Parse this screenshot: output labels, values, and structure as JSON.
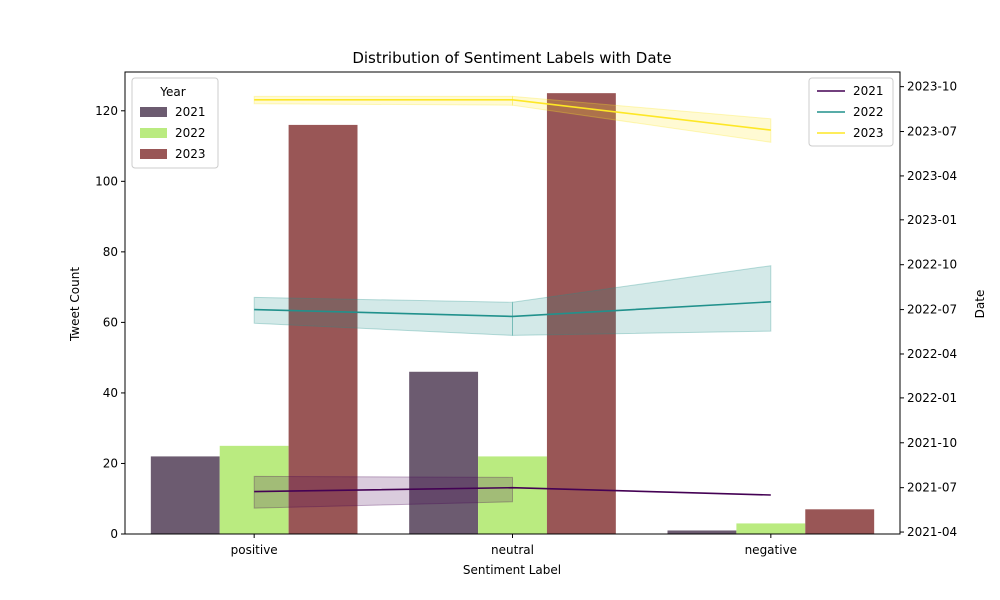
{
  "chart_data": {
    "type": "bar",
    "title": "Distribution of Sentiment Labels with Date",
    "xlabel": "Sentiment Label",
    "ylabel": "Tweet Count",
    "y2label": "Date",
    "categories": [
      "positive",
      "neutral",
      "negative"
    ],
    "ylim": [
      0,
      131
    ],
    "yticks": [
      0,
      20,
      40,
      60,
      80,
      100,
      120
    ],
    "y2lim": [
      "2021-03-28",
      "2023-10-31"
    ],
    "y2ticks": [
      {
        "label": "2021-04",
        "date": "2021-04-01"
      },
      {
        "label": "2021-07",
        "date": "2021-07-01"
      },
      {
        "label": "2021-10",
        "date": "2021-10-01"
      },
      {
        "label": "2022-01",
        "date": "2022-01-01"
      },
      {
        "label": "2022-04",
        "date": "2022-04-01"
      },
      {
        "label": "2022-07",
        "date": "2022-07-01"
      },
      {
        "label": "2022-10",
        "date": "2022-10-01"
      },
      {
        "label": "2023-01",
        "date": "2023-01-01"
      },
      {
        "label": "2023-04",
        "date": "2023-04-01"
      },
      {
        "label": "2023-07",
        "date": "2023-07-01"
      },
      {
        "label": "2023-10",
        "date": "2023-10-01"
      }
    ],
    "bar_legend_title": "Year",
    "bar_legend_position": "top-left",
    "line_legend_position": "top-right",
    "bar_series": [
      {
        "name": "2021",
        "color": "#6c5b70",
        "values": [
          22,
          46,
          1
        ]
      },
      {
        "name": "2022",
        "color": "#baeb80",
        "values": [
          25,
          22,
          3
        ]
      },
      {
        "name": "2023",
        "color": "#995656",
        "values": [
          116,
          125,
          7
        ]
      }
    ],
    "line_series": [
      {
        "name": "2021",
        "color": "#440154",
        "values": [
          "2021-06-23",
          "2021-07-01",
          "2021-06-16"
        ],
        "ci_low": [
          "2021-05-20",
          "2021-06-02",
          null
        ],
        "ci_high": [
          "2021-07-24",
          "2021-07-22",
          null
        ]
      },
      {
        "name": "2022",
        "color": "#21918c",
        "values": [
          "2022-07-01",
          "2022-06-17",
          "2022-07-17"
        ],
        "ci_low": [
          "2022-06-03",
          "2022-05-09",
          "2022-05-18"
        ],
        "ci_high": [
          "2022-07-26",
          "2022-07-16",
          "2022-09-29"
        ]
      },
      {
        "name": "2023",
        "color": "#fde725",
        "values": [
          "2023-09-04",
          "2023-09-04",
          "2023-07-04"
        ],
        "ci_low": [
          "2023-08-27",
          "2023-08-24",
          "2023-06-09"
        ],
        "ci_high": [
          "2023-09-11",
          "2023-09-11",
          "2023-07-27"
        ]
      }
    ]
  }
}
